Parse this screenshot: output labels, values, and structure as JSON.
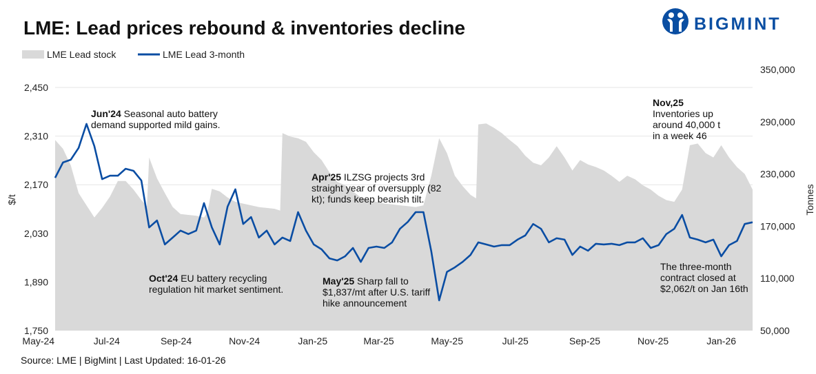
{
  "title": "LME: Lead prices rebound & inventories decline",
  "brand": {
    "name": "BIGMINT",
    "color": "#0a4ea2"
  },
  "source": "Source: LME | BigMint | Last Updated: 16-01-26",
  "chart_data": {
    "type": "line+area",
    "title": "LME: Lead prices rebound & inventories decline",
    "legend_position": "top-left",
    "grid": true,
    "xlim": [
      "2024-05-03",
      "2026-01-16"
    ],
    "x_ticks": [
      {
        "date": "2024-05-01",
        "label": "May-24"
      },
      {
        "date": "2024-07-01",
        "label": "Jul-24"
      },
      {
        "date": "2024-09-01",
        "label": "Sep-24"
      },
      {
        "date": "2024-11-01",
        "label": "Nov-24"
      },
      {
        "date": "2025-01-01",
        "label": "Jan-25"
      },
      {
        "date": "2025-03-01",
        "label": "Mar-25"
      },
      {
        "date": "2025-05-01",
        "label": "May-25"
      },
      {
        "date": "2025-07-01",
        "label": "Jul-25"
      },
      {
        "date": "2025-09-01",
        "label": "Sep-25"
      },
      {
        "date": "2025-11-01",
        "label": "Nov-25"
      },
      {
        "date": "2026-01-01",
        "label": "Jan-26"
      }
    ],
    "y_left": {
      "label": "$/t",
      "ylim": [
        1750,
        2450
      ],
      "ticks": [
        1750,
        1890,
        2030,
        2170,
        2310,
        2450
      ],
      "tick_labels": [
        "1,750",
        "1,890",
        "2,030",
        "2,170",
        "2,310",
        "2,450"
      ]
    },
    "y_right": {
      "label": "Tonnes",
      "ylim": [
        50000,
        350000
      ],
      "ticks": [
        50000,
        110000,
        170000,
        230000,
        290000,
        350000
      ],
      "tick_labels": [
        "50,000",
        "110,000",
        "170,000",
        "230,000",
        "290,000",
        "350,000"
      ]
    },
    "series": [
      {
        "name": "LME Lead stock",
        "type": "area",
        "axis": "right",
        "color": "#d9d9d9",
        "dates": [
          "2024-05-03",
          "2024-05-10",
          "2024-05-17",
          "2024-05-24",
          "2024-05-31",
          "2024-06-07",
          "2024-06-14",
          "2024-06-21",
          "2024-06-28",
          "2024-07-05",
          "2024-07-12",
          "2024-07-19",
          "2024-07-24",
          "2024-07-26",
          "2024-08-02",
          "2024-08-09",
          "2024-08-16",
          "2024-08-23",
          "2024-08-30",
          "2024-09-06",
          "2024-09-13",
          "2024-09-16",
          "2024-09-20",
          "2024-09-27",
          "2024-10-04",
          "2024-10-11",
          "2024-10-18",
          "2024-10-25",
          "2024-11-01",
          "2024-11-08",
          "2024-11-15",
          "2024-11-20",
          "2024-11-22",
          "2024-11-29",
          "2024-12-06",
          "2024-12-13",
          "2024-12-20",
          "2024-12-27",
          "2025-01-03",
          "2025-01-10",
          "2025-01-17",
          "2025-01-24",
          "2025-01-31",
          "2025-02-07",
          "2025-02-14",
          "2025-02-21",
          "2025-02-28",
          "2025-03-07",
          "2025-03-14",
          "2025-03-21",
          "2025-03-28",
          "2025-04-04",
          "2025-04-11",
          "2025-04-18",
          "2025-04-25",
          "2025-05-02",
          "2025-05-09",
          "2025-05-14",
          "2025-05-16",
          "2025-05-23",
          "2025-05-30",
          "2025-06-06",
          "2025-06-13",
          "2025-06-20",
          "2025-06-27",
          "2025-07-04",
          "2025-07-11",
          "2025-07-18",
          "2025-07-25",
          "2025-08-01",
          "2025-08-08",
          "2025-08-15",
          "2025-08-22",
          "2025-08-29",
          "2025-09-05",
          "2025-09-12",
          "2025-09-19",
          "2025-09-26",
          "2025-10-03",
          "2025-10-10",
          "2025-10-17",
          "2025-10-24",
          "2025-10-31",
          "2025-11-07",
          "2025-11-14",
          "2025-11-21",
          "2025-11-28",
          "2025-12-05",
          "2025-12-12",
          "2025-12-19",
          "2025-12-26",
          "2026-01-02",
          "2026-01-09",
          "2026-01-16"
        ],
        "values": [
          269000,
          259000,
          240000,
          208000,
          194000,
          180000,
          191000,
          204000,
          222000,
          222000,
          212000,
          200000,
          193000,
          249000,
          225000,
          208000,
          192000,
          184000,
          183000,
          182000,
          180000,
          186000,
          213000,
          210000,
          203000,
          198000,
          196000,
          194000,
          192000,
          191000,
          190000,
          188000,
          277000,
          273000,
          271000,
          267000,
          255000,
          246000,
          232000,
          221000,
          217000,
          210000,
          203000,
          200000,
          198000,
          196000,
          195000,
          194000,
          193000,
          192000,
          194000,
          228000,
          271000,
          254000,
          228000,
          216000,
          206000,
          202000,
          287000,
          288000,
          283000,
          277000,
          269000,
          262000,
          251000,
          243000,
          240000,
          249000,
          262000,
          249000,
          234000,
          246000,
          241000,
          238000,
          234000,
          228000,
          221000,
          228000,
          224000,
          217000,
          212000,
          205000,
          200000,
          198000,
          212000,
          263000,
          265000,
          254000,
          249000,
          263000,
          249000,
          238000,
          230000,
          212000
        ]
      },
      {
        "name": "LME Lead 3-month",
        "type": "line",
        "axis": "left",
        "color": "#0a4da3",
        "dates": [
          "2024-05-03",
          "2024-05-10",
          "2024-05-17",
          "2024-05-24",
          "2024-05-31",
          "2024-06-07",
          "2024-06-14",
          "2024-06-21",
          "2024-06-28",
          "2024-07-05",
          "2024-07-12",
          "2024-07-19",
          "2024-07-26",
          "2024-08-02",
          "2024-08-09",
          "2024-08-16",
          "2024-08-23",
          "2024-08-30",
          "2024-09-06",
          "2024-09-13",
          "2024-09-20",
          "2024-09-27",
          "2024-10-04",
          "2024-10-11",
          "2024-10-18",
          "2024-10-25",
          "2024-11-01",
          "2024-11-08",
          "2024-11-15",
          "2024-11-22",
          "2024-11-29",
          "2024-12-06",
          "2024-12-13",
          "2024-12-20",
          "2024-12-27",
          "2025-01-03",
          "2025-01-10",
          "2025-01-17",
          "2025-01-24",
          "2025-01-31",
          "2025-02-07",
          "2025-02-14",
          "2025-02-21",
          "2025-02-28",
          "2025-03-07",
          "2025-03-14",
          "2025-03-21",
          "2025-03-28",
          "2025-04-04",
          "2025-04-11",
          "2025-04-18",
          "2025-04-25",
          "2025-05-02",
          "2025-05-09",
          "2025-05-16",
          "2025-05-23",
          "2025-05-30",
          "2025-06-06",
          "2025-06-13",
          "2025-06-20",
          "2025-06-27",
          "2025-07-04",
          "2025-07-11",
          "2025-07-18",
          "2025-07-25",
          "2025-08-01",
          "2025-08-08",
          "2025-08-15",
          "2025-08-22",
          "2025-08-29",
          "2025-09-05",
          "2025-09-12",
          "2025-09-19",
          "2025-09-26",
          "2025-10-03",
          "2025-10-10",
          "2025-10-17",
          "2025-10-24",
          "2025-10-31",
          "2025-11-07",
          "2025-11-14",
          "2025-11-21",
          "2025-11-28",
          "2025-12-05",
          "2025-12-12",
          "2025-12-19",
          "2025-12-26",
          "2026-01-02",
          "2026-01-09",
          "2026-01-16"
        ],
        "values": [
          2190,
          2234,
          2242,
          2276,
          2345,
          2281,
          2186,
          2196,
          2196,
          2216,
          2210,
          2182,
          2047,
          2067,
          1998,
          2018,
          2038,
          2028,
          2038,
          2117,
          2047,
          1998,
          2107,
          2157,
          2057,
          2077,
          2018,
          2038,
          1998,
          2018,
          2008,
          2091,
          2038,
          1998,
          1984,
          1958,
          1952,
          1964,
          1988,
          1948,
          1988,
          1992,
          1988,
          2004,
          2043,
          2063,
          2091,
          2091,
          1978,
          1837,
          1919,
          1932,
          1948,
          1968,
          2004,
          1998,
          1992,
          1996,
          1996,
          2012,
          2024,
          2057,
          2043,
          2004,
          2016,
          2012,
          1968,
          1992,
          1980,
          2000,
          1998,
          2000,
          1996,
          2004,
          2004,
          2016,
          1988,
          1996,
          2028,
          2043,
          2083,
          2018,
          2012,
          2004,
          2012,
          1964,
          1996,
          2008,
          2057,
          2062
        ]
      }
    ],
    "annotations": [
      {
        "bold": "Jun'24",
        "lines": [
          " Seasonal auto battery",
          "demand supported mild gains."
        ]
      },
      {
        "bold": "Apr'25",
        "lines": [
          " ILZSG projects 3rd",
          "straight year of oversupply (82",
          "kt); funds keep bearish tilt."
        ]
      },
      {
        "bold": "Oct'24",
        "lines": [
          " EU battery recycling",
          "regulation hit market sentiment."
        ]
      },
      {
        "bold": "May'25",
        "lines": [
          " Sharp fall to",
          "$1,837/mt after U.S. tariff",
          "hike announcement"
        ]
      },
      {
        "bold": "Nov,25",
        "lines": [
          "",
          "Inventories up",
          "around 40,000 t",
          "in a week 46"
        ]
      },
      {
        "bold": "",
        "lines": [
          "The three-month",
          "contract closed at",
          "$2,062/t on Jan 16th"
        ]
      }
    ]
  }
}
